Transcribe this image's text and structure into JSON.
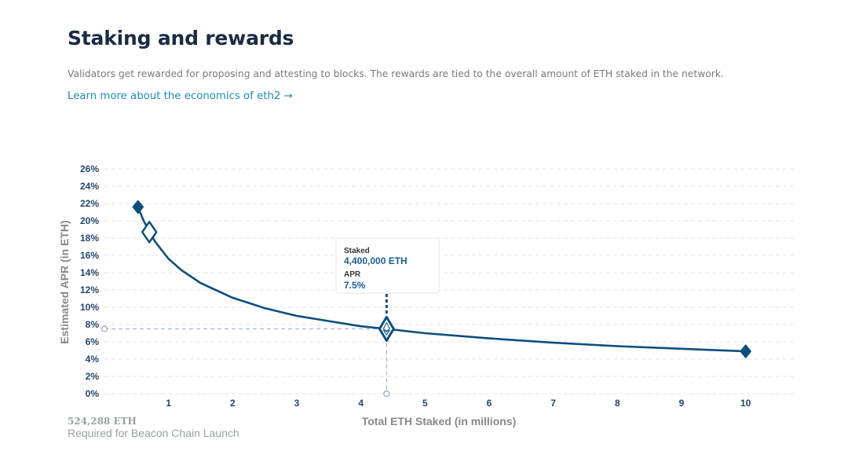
{
  "header": {
    "title": "Staking and rewards",
    "description": "Validators get rewarded for proposing and attesting to blocks. The rewards are tied to the overall amount of ETH staked in the network.",
    "learn_more_link": "Learn more about the economics of eth2 →"
  },
  "footnote": {
    "amount": "524,288 ETH",
    "caption": "Required for Beacon Chain Launch"
  },
  "tooltip": {
    "staked_label": "Staked",
    "staked_value": "4,400,000 ETH",
    "apr_label": "APR",
    "apr_value": "7.5%"
  },
  "chart_data": {
    "type": "line",
    "xlabel": "Total ETH Staked  (in millions)",
    "ylabel": "Estimated APR (in ETH)",
    "xlim": [
      0,
      10.8
    ],
    "ylim": [
      0,
      26
    ],
    "x_ticks": [
      {
        "value": 1,
        "label": "1"
      },
      {
        "value": 2,
        "label": "2"
      },
      {
        "value": 3,
        "label": "3"
      },
      {
        "value": 4,
        "label": "4"
      },
      {
        "value": 5,
        "label": "5"
      },
      {
        "value": 6,
        "label": "6"
      },
      {
        "value": 7,
        "label": "7"
      },
      {
        "value": 8,
        "label": "8"
      },
      {
        "value": 9,
        "label": "9"
      },
      {
        "value": 10,
        "label": "10"
      }
    ],
    "y_ticks": [
      {
        "value": 0,
        "label": "0%"
      },
      {
        "value": 2,
        "label": "2%"
      },
      {
        "value": 4,
        "label": "4%"
      },
      {
        "value": 6,
        "label": "6%"
      },
      {
        "value": 8,
        "label": "8%"
      },
      {
        "value": 10,
        "label": "10%"
      },
      {
        "value": 12,
        "label": "12%"
      },
      {
        "value": 14,
        "label": "14%"
      },
      {
        "value": 16,
        "label": "16%"
      },
      {
        "value": 18,
        "label": "18%"
      },
      {
        "value": 20,
        "label": "20%"
      },
      {
        "value": 22,
        "label": "22%"
      },
      {
        "value": 24,
        "label": "24%"
      },
      {
        "value": 26,
        "label": "26%"
      }
    ],
    "grid": true,
    "series": [
      {
        "x": [
          0.524288,
          0.6,
          0.7,
          0.8,
          1,
          1.2,
          1.5,
          2,
          2.5,
          3,
          3.5,
          4,
          4.4,
          5,
          6,
          7,
          8,
          9,
          10
        ],
        "y": [
          21.6,
          20.2,
          18.7,
          17.5,
          15.6,
          14.3,
          12.8,
          11.1,
          9.9,
          9.0,
          8.4,
          7.8,
          7.5,
          7.0,
          6.4,
          5.9,
          5.5,
          5.2,
          4.9
        ]
      }
    ],
    "start_point": {
      "x": 0.524288,
      "y": 21.6
    },
    "end_point": {
      "x": 10,
      "y": 4.9
    },
    "highlight": {
      "x": 4.4,
      "y": 7.5
    },
    "slider_handle": {
      "x": 0.7,
      "y": 18.7
    },
    "colors": {
      "line": "#0b4f7e",
      "grid": "#e5e5e5",
      "guide": "#a8b6c4",
      "tick": "#24476f",
      "axis_label": "#888888"
    }
  }
}
